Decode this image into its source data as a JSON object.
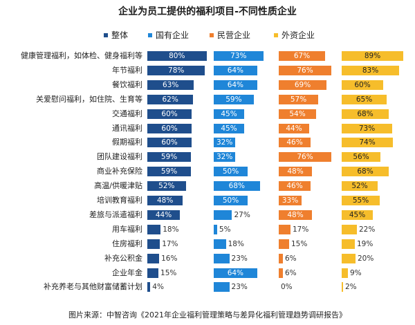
{
  "chart_data": {
    "type": "bar",
    "title": "企业为员工提供的福利项目-不同性质企业",
    "categories": [
      "健康管理福利，如体检、健身福利等",
      "年节福利",
      "餐饮福利",
      "关爱慰问福利，如住院、生育等",
      "交通福利",
      "通讯福利",
      "假期福利",
      "团队建设福利",
      "商业补充保险",
      "高温/供暖津贴",
      "培训教育福利",
      "差旅与派遣福利",
      "用车福利",
      "住房福利",
      "补充公积金",
      "企业年金",
      "补充养老与其他财富储蓄计划"
    ],
    "series": [
      {
        "name": "整体",
        "color": "#1f4e8c",
        "values": [
          80,
          78,
          63,
          62,
          60,
          60,
          60,
          59,
          59,
          52,
          48,
          44,
          18,
          17,
          16,
          15,
          4
        ]
      },
      {
        "name": "国有企业",
        "color": "#1f86d8",
        "values": [
          73,
          64,
          64,
          59,
          45,
          45,
          32,
          32,
          50,
          68,
          50,
          27,
          5,
          18,
          23,
          64,
          23
        ]
      },
      {
        "name": "民营企业",
        "color": "#ef7f2e",
        "values": [
          67,
          76,
          69,
          57,
          54,
          44,
          46,
          76,
          48,
          46,
          33,
          48,
          17,
          15,
          6,
          6,
          0
        ]
      },
      {
        "name": "外资企业",
        "color": "#f6bd2b",
        "values": [
          89,
          83,
          60,
          65,
          68,
          73,
          74,
          56,
          68,
          52,
          55,
          45,
          22,
          19,
          20,
          9,
          2
        ]
      }
    ],
    "value_suffix": "%",
    "source": "图片来源：中智咨询《2021年企业福利管理策略与差异化福利管理趋势调研报告》"
  }
}
